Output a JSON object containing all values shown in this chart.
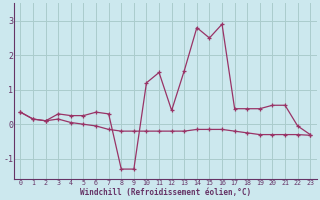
{
  "xlabel": "Windchill (Refroidissement éolien,°C)",
  "bg_color": "#cce8ee",
  "grid_color": "#aacccc",
  "line_color": "#993366",
  "axis_color": "#663366",
  "x_ticks": [
    0,
    1,
    2,
    3,
    4,
    5,
    6,
    7,
    8,
    9,
    10,
    11,
    12,
    13,
    14,
    15,
    16,
    17,
    18,
    19,
    20,
    21,
    22,
    23
  ],
  "y_ticks": [
    -1,
    0,
    1,
    2,
    3
  ],
  "ylim": [
    -1.6,
    3.5
  ],
  "xlim": [
    -0.5,
    23.5
  ],
  "series1": [
    0.35,
    0.15,
    0.1,
    0.3,
    0.25,
    0.25,
    0.35,
    0.3,
    -1.3,
    -1.3,
    1.2,
    1.5,
    0.4,
    1.55,
    2.8,
    2.5,
    2.9,
    0.45,
    0.45,
    0.45,
    0.55,
    0.55,
    -0.05,
    -0.3
  ],
  "series2": [
    0.35,
    0.15,
    0.1,
    0.15,
    0.05,
    0.0,
    -0.05,
    -0.15,
    -0.2,
    -0.2,
    -0.2,
    -0.2,
    -0.2,
    -0.2,
    -0.15,
    -0.15,
    -0.15,
    -0.2,
    -0.25,
    -0.3,
    -0.3,
    -0.3,
    -0.3,
    -0.32
  ]
}
